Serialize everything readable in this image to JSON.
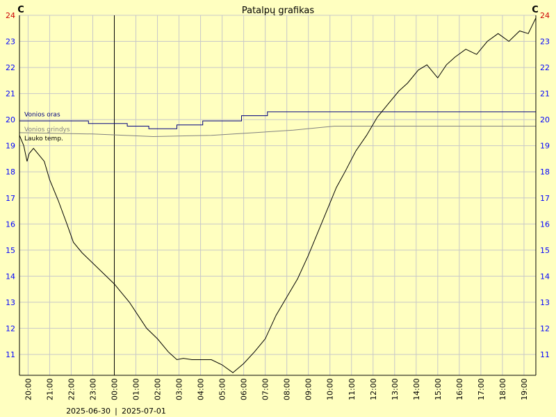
{
  "chart_data": {
    "type": "line",
    "title": "Patalpų grafikas",
    "y_unit_left": "C",
    "y_unit_right": "C",
    "ylim": [
      10.2,
      24
    ],
    "yticks": [
      11,
      12,
      13,
      14,
      15,
      16,
      17,
      18,
      19,
      20,
      21,
      22,
      23,
      24
    ],
    "xlabels": [
      "20:00",
      "21:00",
      "22:00",
      "23:00",
      "00:00",
      "01:00",
      "02:00",
      "03:00",
      "04:00",
      "05:00",
      "06:00",
      "07:00",
      "08:00",
      "09:00",
      "10:00",
      "11:00",
      "12:00",
      "13:00",
      "14:00",
      "15:00",
      "16:00",
      "17:00",
      "18:00",
      "19:00"
    ],
    "xlim": [
      -0.4,
      23.55
    ],
    "day_marker": 4,
    "date_labels": [
      "2025-06-30",
      "2025-07-01"
    ],
    "grid": true,
    "legend": "in-plot-left",
    "colors": {
      "background": "#ffffc0",
      "grid": "#c8c8c8",
      "axis_text": "#0000ff",
      "axis_text_red": "#cc0000",
      "vonios_oras": "#000080",
      "vonios_grindys": "#808080",
      "lauko_temp": "#000000"
    },
    "series": [
      {
        "name": "Vonios oras",
        "color": "#000080",
        "x": [
          -0.4,
          2.8,
          2.8,
          4.6,
          4.6,
          5.6,
          5.6,
          6.9,
          6.9,
          8.1,
          8.1,
          9.9,
          9.9,
          11.1,
          11.1,
          23.55
        ],
        "y": [
          19.95,
          19.95,
          19.85,
          19.85,
          19.75,
          19.75,
          19.65,
          19.65,
          19.8,
          19.8,
          19.95,
          19.95,
          20.15,
          20.15,
          20.3,
          20.3
        ]
      },
      {
        "name": "Vonios grindys",
        "color": "#808080",
        "x": [
          -0.4,
          3.0,
          5.8,
          8.5,
          10.5,
          12.3,
          14.2,
          23.55
        ],
        "y": [
          19.5,
          19.45,
          19.35,
          19.4,
          19.5,
          19.6,
          19.75,
          19.75
        ]
      },
      {
        "name": "Lauko temp.",
        "color": "#000000",
        "x": [
          -0.4,
          -0.2,
          -0.05,
          0.05,
          0.25,
          0.55,
          0.75,
          1.0,
          1.4,
          1.8,
          2.1,
          2.5,
          3.0,
          3.5,
          4.0,
          4.3,
          4.7,
          5.1,
          5.5,
          6.0,
          6.5,
          6.9,
          7.2,
          7.6,
          8.0,
          8.5,
          9.0,
          9.5,
          10.0,
          10.5,
          11.0,
          11.5,
          12.0,
          12.5,
          13.0,
          13.5,
          14.0,
          14.3,
          14.7,
          15.2,
          15.7,
          16.2,
          16.7,
          17.2,
          17.6,
          18.1,
          18.5,
          18.8,
          19.0,
          19.4,
          19.8,
          20.3,
          20.8,
          21.3,
          21.8,
          22.3,
          22.8,
          23.2,
          23.55
        ],
        "y": [
          19.4,
          19.0,
          18.4,
          18.7,
          18.9,
          18.6,
          18.4,
          17.7,
          16.9,
          16.0,
          15.3,
          14.9,
          14.5,
          14.1,
          13.7,
          13.4,
          13.0,
          12.5,
          12.0,
          11.6,
          11.1,
          10.8,
          10.85,
          10.8,
          10.8,
          10.8,
          10.6,
          10.3,
          10.65,
          11.1,
          11.6,
          12.5,
          13.2,
          13.9,
          14.8,
          15.8,
          16.8,
          17.4,
          18.0,
          18.8,
          19.4,
          20.1,
          20.6,
          21.1,
          21.4,
          21.9,
          22.1,
          21.8,
          21.6,
          22.1,
          22.4,
          22.7,
          22.5,
          23.0,
          23.3,
          23.0,
          23.4,
          23.3,
          23.9
        ]
      }
    ]
  }
}
